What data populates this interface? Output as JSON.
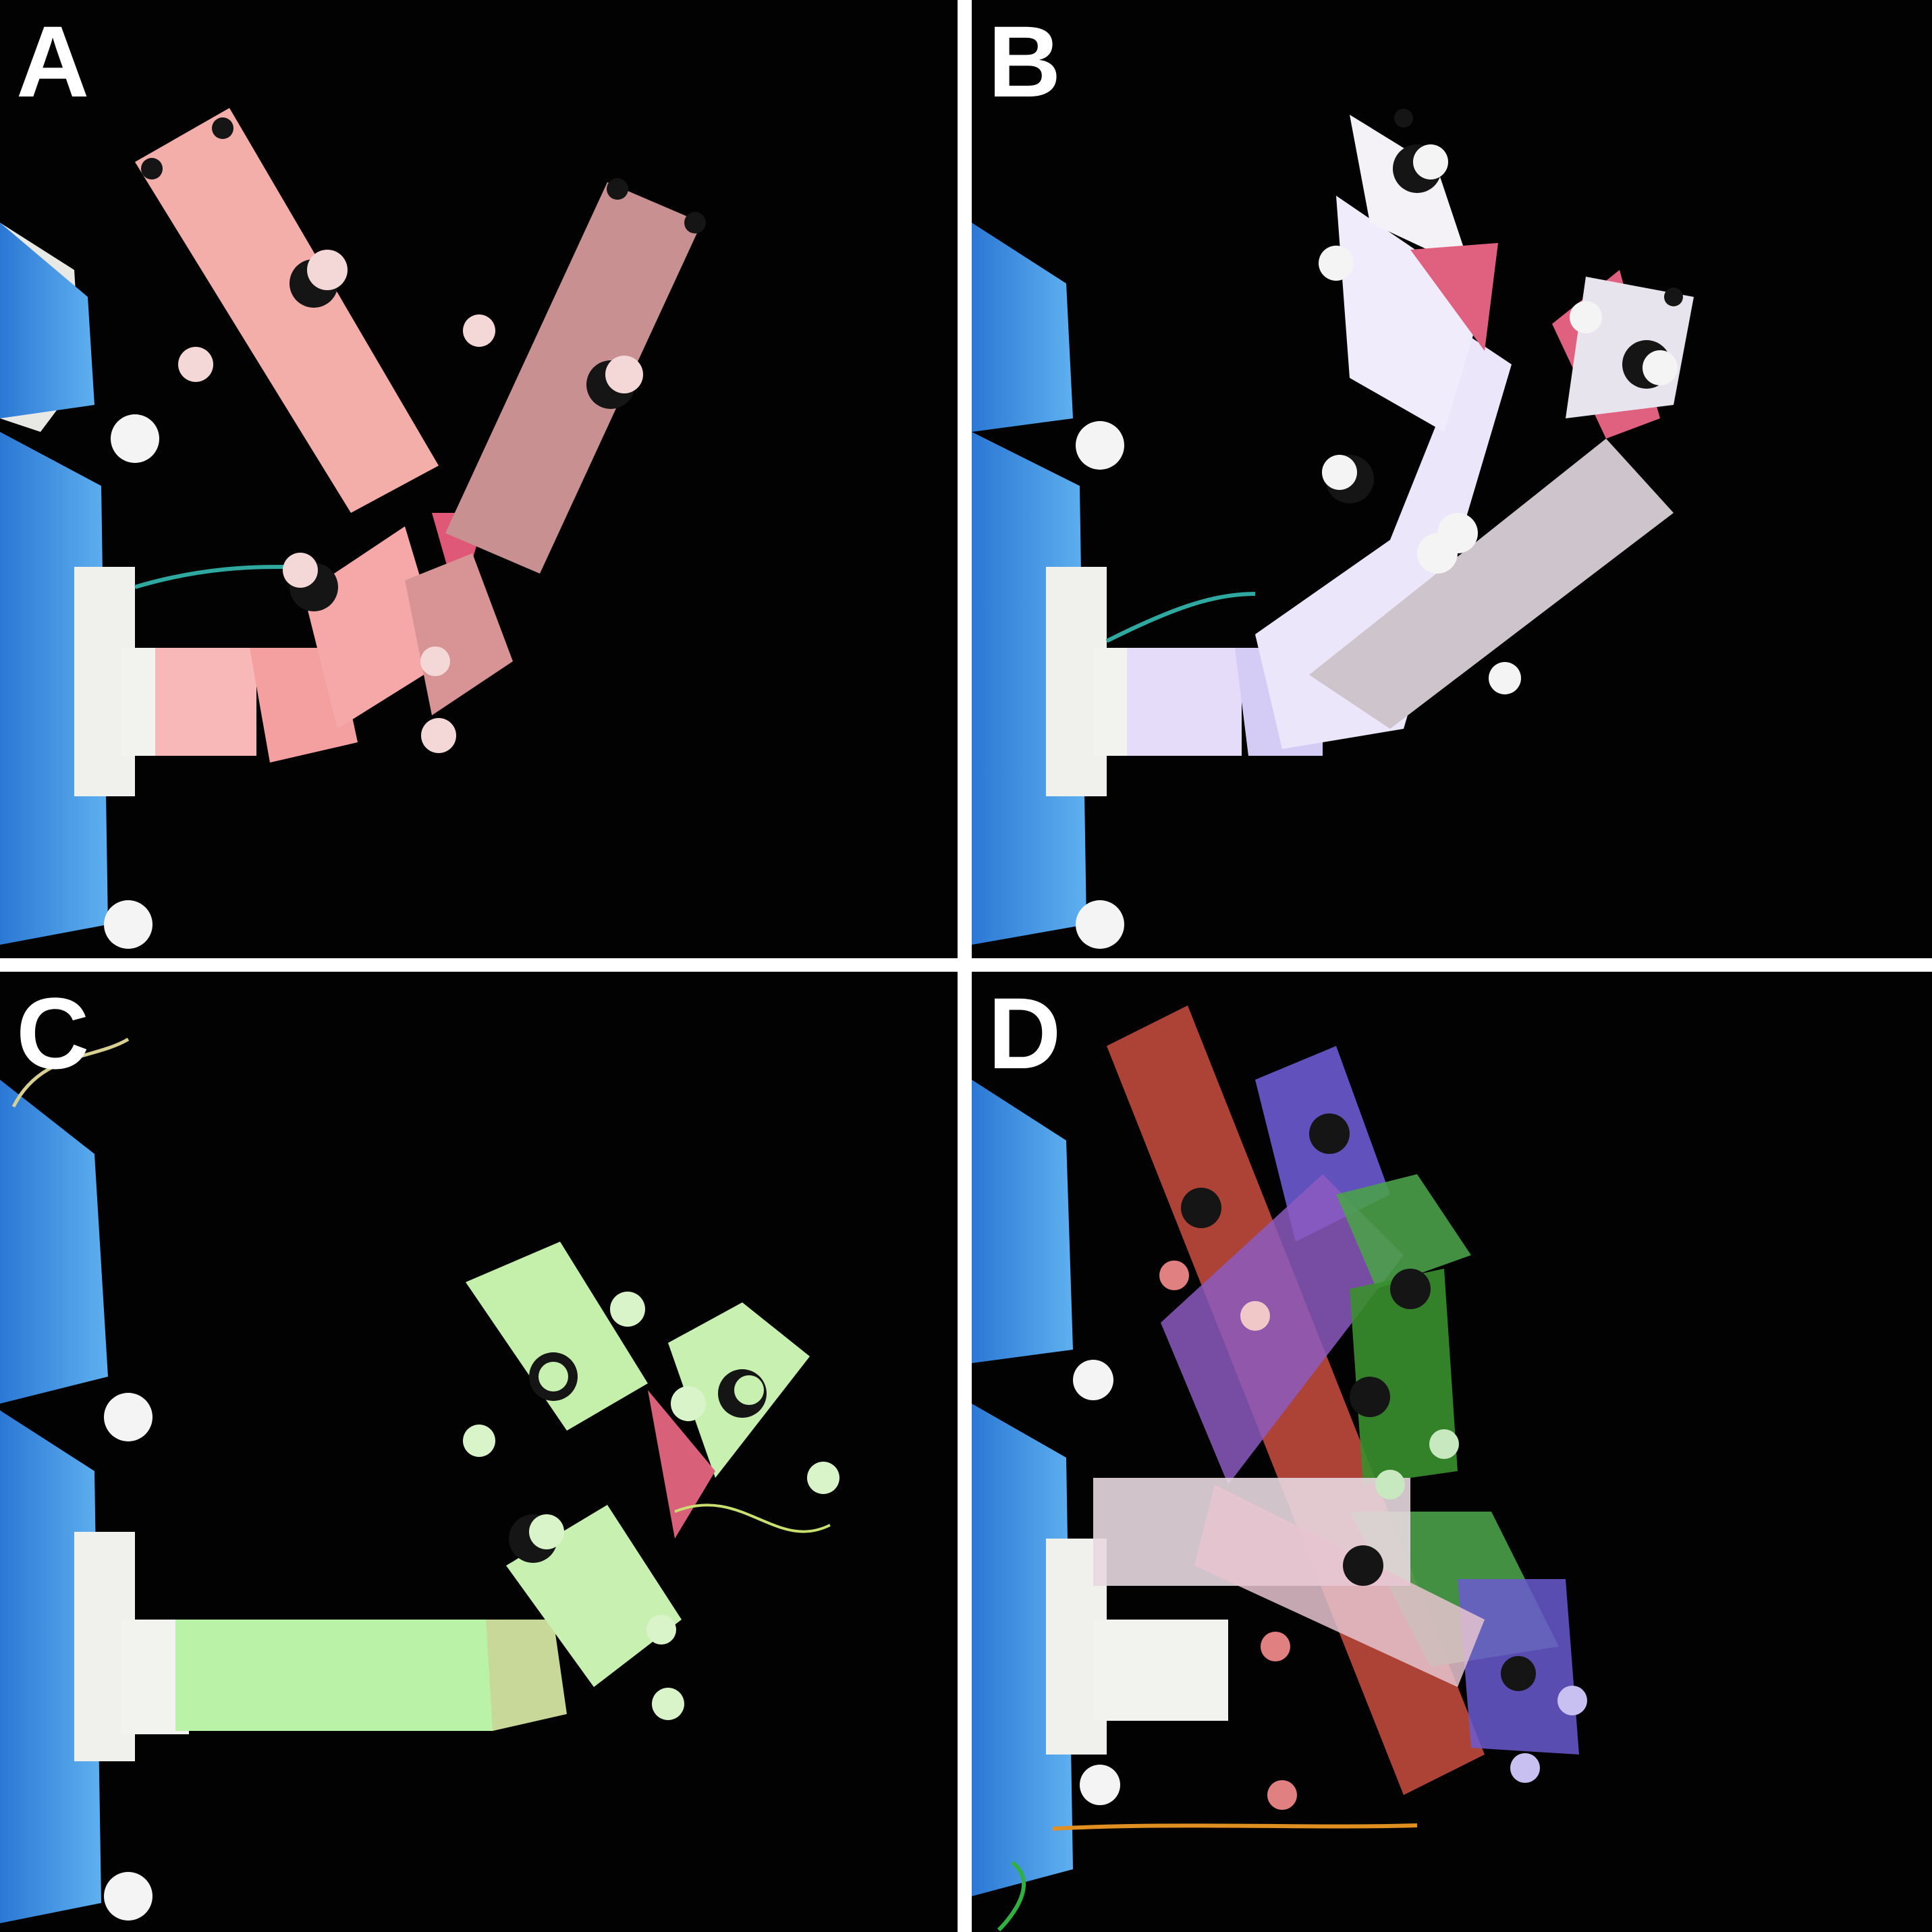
{
  "figure": {
    "panels": [
      {
        "label": "A",
        "tint": "#f4a0a0",
        "tint_name": "red"
      },
      {
        "label": "B",
        "tint": "#c9c2f4",
        "tint_name": "blue-violet"
      },
      {
        "label": "C",
        "tint": "#b8f0a8",
        "tint_name": "green"
      },
      {
        "label": "D",
        "tint": "#c0493c",
        "tint_name": "composite"
      }
    ],
    "colors": {
      "background": "#020202",
      "divider": "#ffffff",
      "tape_blue": "#3c8fe0",
      "mount_white": "#f2f2ee",
      "marker_white": "#f4f4f4",
      "marker_black": "#151515"
    }
  }
}
